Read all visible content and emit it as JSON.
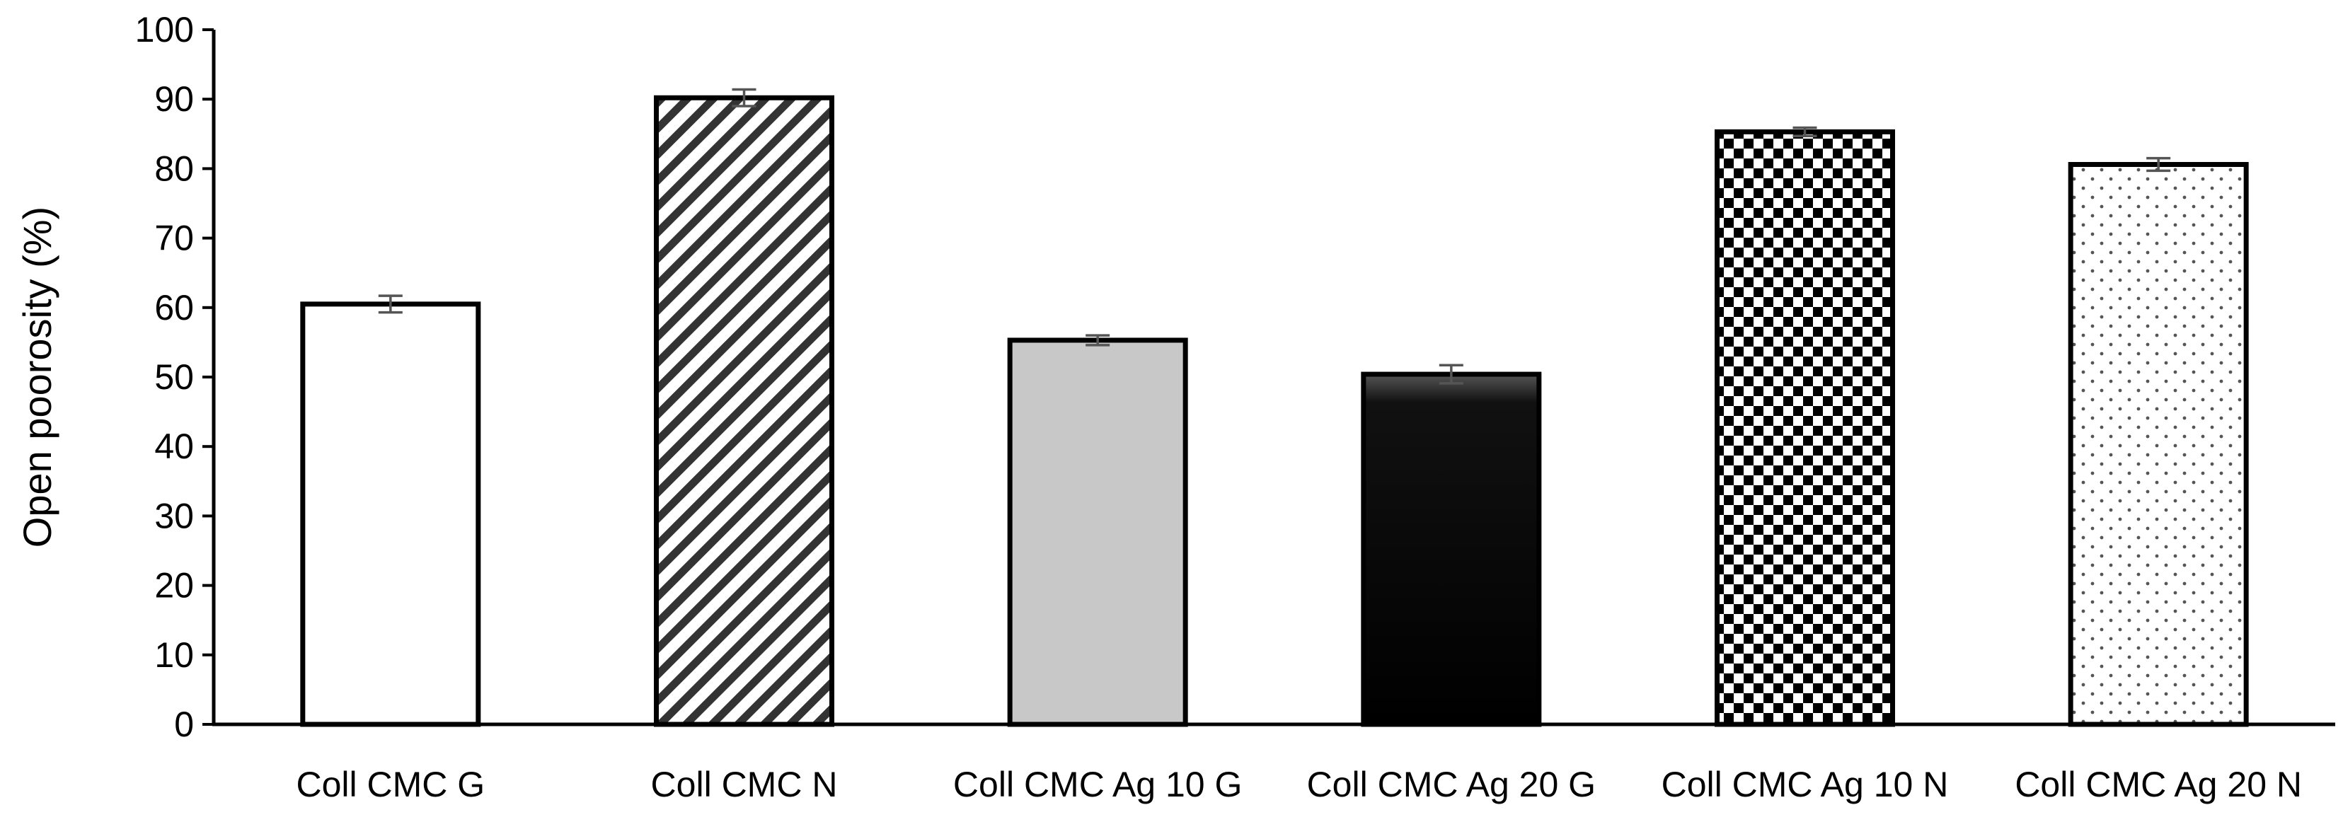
{
  "chart_data": {
    "type": "bar",
    "title": "",
    "xlabel": "",
    "ylabel": "Open poorosity (%)",
    "ylim": [
      0,
      100
    ],
    "yticks": [
      0,
      10,
      20,
      30,
      40,
      50,
      60,
      70,
      80,
      90,
      100
    ],
    "grid": false,
    "legend": "none",
    "categories": [
      "Coll CMC G",
      "Coll CMC N",
      "Coll CMC Ag 10 G",
      "Coll CMC Ag 20 G",
      "Coll CMC Ag 10 N",
      "Coll CMC Ag 20 N"
    ],
    "values": [
      60.5,
      90.2,
      55.3,
      50.4,
      85.3,
      80.6
    ],
    "errors": [
      1.2,
      1.2,
      0.7,
      1.3,
      0.6,
      0.9
    ],
    "fills": [
      "white",
      "diagonal-stripes",
      "light-gray",
      "black-gradient",
      "checkerboard",
      "dots"
    ],
    "colors": {
      "bar_outline": "#000000",
      "light_gray": "#c8c8c8",
      "black": "#000000",
      "error_bar": "#555555"
    }
  }
}
